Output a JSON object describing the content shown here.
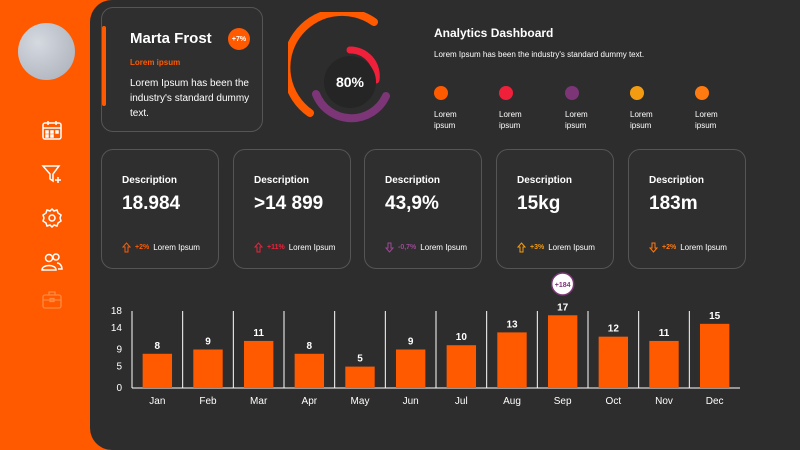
{
  "colors": {
    "accent": "#ff5a00",
    "red": "#f0203a",
    "purple": "#7c3577",
    "amber": "#f39c12",
    "background": "#2d2d2d"
  },
  "sidebar": {
    "icons": [
      "calendar-icon",
      "funnel-add-icon",
      "settings-gear-icon",
      "users-icon",
      "briefcase-icon"
    ]
  },
  "profile": {
    "name": "Marta Frost",
    "badge": "+7%",
    "subtitle": "Lorem ipsum",
    "text": "Lorem Ipsum has been the industry's standard dummy text."
  },
  "donut": {
    "center_label": "80%"
  },
  "dashboard": {
    "title": "Analytics Dashboard",
    "subtitle": "Lorem Ipsum has been the industry's standard dummy text.",
    "legend": [
      {
        "label": "Lorem ipsum",
        "color": "#ff5a00"
      },
      {
        "label": "Lorem ipsum",
        "color": "#f0203a"
      },
      {
        "label": "Lorem ipsum",
        "color": "#7c3577"
      },
      {
        "label": "Lorem ipsum",
        "color": "#f39c12"
      },
      {
        "label": "Lorem ipsum",
        "color": "#ff7a10"
      }
    ]
  },
  "stats": [
    {
      "title": "Description",
      "value": "18.984",
      "delta": "+2%",
      "caption": "Lorem Ipsum",
      "color": "#ff5a00"
    },
    {
      "title": "Description",
      "value": ">14 899",
      "delta": "+11%",
      "caption": "Lorem Ipsum",
      "color": "#f0203a"
    },
    {
      "title": "Description",
      "value": "43,9%",
      "delta": "-0,7%",
      "caption": "Lorem Ipsum",
      "color": "#7c3577"
    },
    {
      "title": "Description",
      "value": "15kg",
      "delta": "+3%",
      "caption": "Lorem Ipsum",
      "color": "#f39c12"
    },
    {
      "title": "Description",
      "value": "183m",
      "delta": "+2%",
      "caption": "Lorem Ipsum",
      "color": "#ff7a10"
    }
  ],
  "chart_data": {
    "type": "bar",
    "title": "",
    "xlabel": "",
    "ylabel": "",
    "categories": [
      "Jan",
      "Feb",
      "Mar",
      "Apr",
      "May",
      "Jun",
      "Jul",
      "Aug",
      "Sep",
      "Oct",
      "Nov",
      "Dec"
    ],
    "values": [
      8,
      9,
      11,
      8,
      5,
      9,
      10,
      13,
      17,
      12,
      11,
      15
    ],
    "yticks": [
      0,
      5,
      9,
      14,
      18
    ],
    "ylim": [
      0,
      18
    ],
    "callout": {
      "category": "Sep",
      "label": "+184"
    }
  }
}
